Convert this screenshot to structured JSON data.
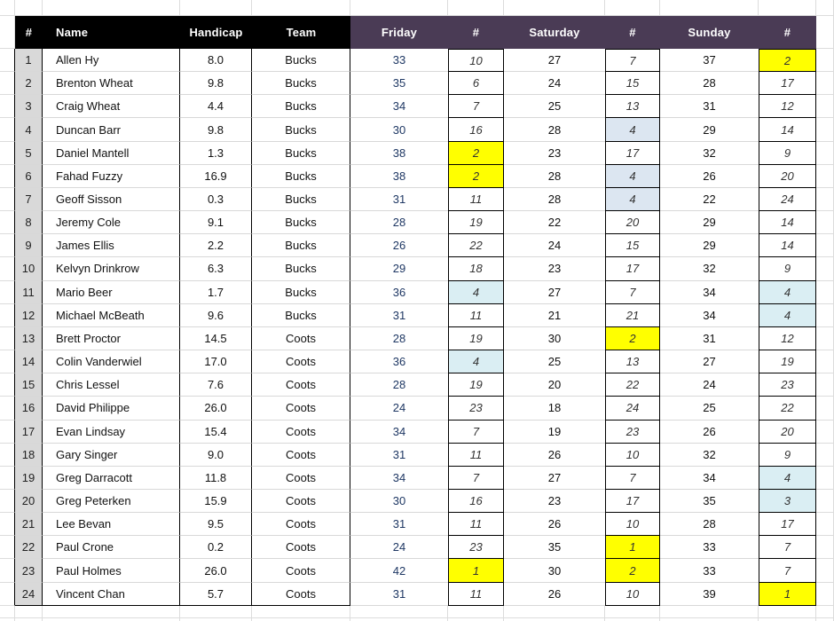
{
  "header": {
    "columns": [
      {
        "label": "#"
      },
      {
        "label": "Name"
      },
      {
        "label": "Handicap"
      },
      {
        "label": "Team"
      },
      {
        "label": "Friday"
      },
      {
        "label": "#"
      },
      {
        "label": "Saturday"
      },
      {
        "label": "#"
      },
      {
        "label": "Sunday"
      },
      {
        "label": "#"
      }
    ]
  },
  "colors": {
    "header_left_bg": "#000000",
    "header_right_bg": "#4a3b55",
    "row_number_bg": "#d9d9d9",
    "friday_score_text": "#1f3864",
    "highlight_yellow": "#ffff00",
    "highlight_blue": "#dce6f1",
    "highlight_cyan": "#daeef3"
  },
  "rows": [
    {
      "num": "1",
      "name": "Allen Hy",
      "handicap": "8.0",
      "team": "Bucks",
      "fri": "33",
      "fri_rank": "10",
      "fri_hl": null,
      "sat": "27",
      "sat_rank": "7",
      "sat_hl": null,
      "sun": "37",
      "sun_rank": "2",
      "sun_hl": "yellow"
    },
    {
      "num": "2",
      "name": "Brenton Wheat",
      "handicap": "9.8",
      "team": "Bucks",
      "fri": "35",
      "fri_rank": "6",
      "fri_hl": null,
      "sat": "24",
      "sat_rank": "15",
      "sat_hl": null,
      "sun": "28",
      "sun_rank": "17",
      "sun_hl": null
    },
    {
      "num": "3",
      "name": "Craig Wheat",
      "handicap": "4.4",
      "team": "Bucks",
      "fri": "34",
      "fri_rank": "7",
      "fri_hl": null,
      "sat": "25",
      "sat_rank": "13",
      "sat_hl": null,
      "sun": "31",
      "sun_rank": "12",
      "sun_hl": null
    },
    {
      "num": "4",
      "name": "Duncan Barr",
      "handicap": "9.8",
      "team": "Bucks",
      "fri": "30",
      "fri_rank": "16",
      "fri_hl": null,
      "sat": "28",
      "sat_rank": "4",
      "sat_hl": "blue",
      "sun": "29",
      "sun_rank": "14",
      "sun_hl": null
    },
    {
      "num": "5",
      "name": "Daniel Mantell",
      "handicap": "1.3",
      "team": "Bucks",
      "fri": "38",
      "fri_rank": "2",
      "fri_hl": "yellow",
      "sat": "23",
      "sat_rank": "17",
      "sat_hl": null,
      "sun": "32",
      "sun_rank": "9",
      "sun_hl": null
    },
    {
      "num": "6",
      "name": "Fahad Fuzzy",
      "handicap": "16.9",
      "team": "Bucks",
      "fri": "38",
      "fri_rank": "2",
      "fri_hl": "yellow",
      "sat": "28",
      "sat_rank": "4",
      "sat_hl": "blue",
      "sun": "26",
      "sun_rank": "20",
      "sun_hl": null
    },
    {
      "num": "7",
      "name": "Geoff Sisson",
      "handicap": "0.3",
      "team": "Bucks",
      "fri": "31",
      "fri_rank": "11",
      "fri_hl": null,
      "sat": "28",
      "sat_rank": "4",
      "sat_hl": "blue",
      "sun": "22",
      "sun_rank": "24",
      "sun_hl": null
    },
    {
      "num": "8",
      "name": "Jeremy Cole",
      "handicap": "9.1",
      "team": "Bucks",
      "fri": "28",
      "fri_rank": "19",
      "fri_hl": null,
      "sat": "22",
      "sat_rank": "20",
      "sat_hl": null,
      "sun": "29",
      "sun_rank": "14",
      "sun_hl": null
    },
    {
      "num": "9",
      "name": "James Ellis",
      "handicap": "2.2",
      "team": "Bucks",
      "fri": "26",
      "fri_rank": "22",
      "fri_hl": null,
      "sat": "24",
      "sat_rank": "15",
      "sat_hl": null,
      "sun": "29",
      "sun_rank": "14",
      "sun_hl": null
    },
    {
      "num": "10",
      "name": "Kelvyn Drinkrow",
      "handicap": "6.3",
      "team": "Bucks",
      "fri": "29",
      "fri_rank": "18",
      "fri_hl": null,
      "sat": "23",
      "sat_rank": "17",
      "sat_hl": null,
      "sun": "32",
      "sun_rank": "9",
      "sun_hl": null
    },
    {
      "num": "11",
      "name": "Mario Beer",
      "handicap": "1.7",
      "team": "Bucks",
      "fri": "36",
      "fri_rank": "4",
      "fri_hl": "cyan",
      "sat": "27",
      "sat_rank": "7",
      "sat_hl": null,
      "sun": "34",
      "sun_rank": "4",
      "sun_hl": "cyan"
    },
    {
      "num": "12",
      "name": "Michael McBeath",
      "handicap": "9.6",
      "team": "Bucks",
      "fri": "31",
      "fri_rank": "11",
      "fri_hl": null,
      "sat": "21",
      "sat_rank": "21",
      "sat_hl": null,
      "sun": "34",
      "sun_rank": "4",
      "sun_hl": "cyan"
    },
    {
      "num": "13",
      "name": "Brett Proctor",
      "handicap": "14.5",
      "team": "Coots",
      "fri": "28",
      "fri_rank": "19",
      "fri_hl": null,
      "sat": "30",
      "sat_rank": "2",
      "sat_hl": "yellow",
      "sun": "31",
      "sun_rank": "12",
      "sun_hl": null
    },
    {
      "num": "14",
      "name": "Colin Vanderwiel",
      "handicap": "17.0",
      "team": "Coots",
      "fri": "36",
      "fri_rank": "4",
      "fri_hl": "cyan",
      "sat": "25",
      "sat_rank": "13",
      "sat_hl": null,
      "sun": "27",
      "sun_rank": "19",
      "sun_hl": null
    },
    {
      "num": "15",
      "name": "Chris Lessel",
      "handicap": "7.6",
      "team": "Coots",
      "fri": "28",
      "fri_rank": "19",
      "fri_hl": null,
      "sat": "20",
      "sat_rank": "22",
      "sat_hl": null,
      "sun": "24",
      "sun_rank": "23",
      "sun_hl": null
    },
    {
      "num": "16",
      "name": "David Philippe",
      "handicap": "26.0",
      "team": "Coots",
      "fri": "24",
      "fri_rank": "23",
      "fri_hl": null,
      "sat": "18",
      "sat_rank": "24",
      "sat_hl": null,
      "sun": "25",
      "sun_rank": "22",
      "sun_hl": null
    },
    {
      "num": "17",
      "name": "Evan Lindsay",
      "handicap": "15.4",
      "team": "Coots",
      "fri": "34",
      "fri_rank": "7",
      "fri_hl": null,
      "sat": "19",
      "sat_rank": "23",
      "sat_hl": null,
      "sun": "26",
      "sun_rank": "20",
      "sun_hl": null
    },
    {
      "num": "18",
      "name": "Gary Singer",
      "handicap": "9.0",
      "team": "Coots",
      "fri": "31",
      "fri_rank": "11",
      "fri_hl": null,
      "sat": "26",
      "sat_rank": "10",
      "sat_hl": null,
      "sun": "32",
      "sun_rank": "9",
      "sun_hl": null
    },
    {
      "num": "19",
      "name": "Greg Darracott",
      "handicap": "11.8",
      "team": "Coots",
      "fri": "34",
      "fri_rank": "7",
      "fri_hl": null,
      "sat": "27",
      "sat_rank": "7",
      "sat_hl": null,
      "sun": "34",
      "sun_rank": "4",
      "sun_hl": "cyan"
    },
    {
      "num": "20",
      "name": "Greg Peterken",
      "handicap": "15.9",
      "team": "Coots",
      "fri": "30",
      "fri_rank": "16",
      "fri_hl": null,
      "sat": "23",
      "sat_rank": "17",
      "sat_hl": null,
      "sun": "35",
      "sun_rank": "3",
      "sun_hl": "cyan"
    },
    {
      "num": "21",
      "name": "Lee Bevan",
      "handicap": "9.5",
      "team": "Coots",
      "fri": "31",
      "fri_rank": "11",
      "fri_hl": null,
      "sat": "26",
      "sat_rank": "10",
      "sat_hl": null,
      "sun": "28",
      "sun_rank": "17",
      "sun_hl": null
    },
    {
      "num": "22",
      "name": "Paul Crone",
      "handicap": "0.2",
      "team": "Coots",
      "fri": "24",
      "fri_rank": "23",
      "fri_hl": null,
      "sat": "35",
      "sat_rank": "1",
      "sat_hl": "yellow",
      "sun": "33",
      "sun_rank": "7",
      "sun_hl": null
    },
    {
      "num": "23",
      "name": "Paul Holmes",
      "handicap": "26.0",
      "team": "Coots",
      "fri": "42",
      "fri_rank": "1",
      "fri_hl": "yellow",
      "sat": "30",
      "sat_rank": "2",
      "sat_hl": "yellow",
      "sun": "33",
      "sun_rank": "7",
      "sun_hl": null
    },
    {
      "num": "24",
      "name": "Vincent Chan",
      "handicap": "5.7",
      "team": "Coots",
      "fri": "31",
      "fri_rank": "11",
      "fri_hl": null,
      "sat": "26",
      "sat_rank": "10",
      "sat_hl": null,
      "sun": "39",
      "sun_rank": "1",
      "sun_hl": "yellow"
    }
  ]
}
